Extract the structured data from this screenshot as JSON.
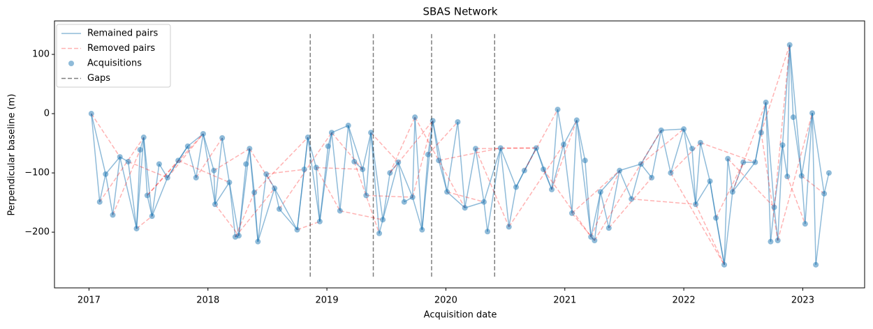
{
  "chart_data": {
    "type": "network",
    "title": "SBAS Network",
    "x_label": "Acquisition date",
    "y_label": "Perpendicular baseline (m)",
    "xlim": [
      2016.71,
      2023.52
    ],
    "ylim": [
      -294,
      156.5
    ],
    "xticks": [
      2017,
      2018,
      2019,
      2020,
      2021,
      2022,
      2023
    ],
    "yticks": [
      {
        "value": -200,
        "label": "−200"
      },
      {
        "value": -100,
        "label": "−100"
      },
      0,
      100
    ],
    "legend": "upper left",
    "remained_pairs": {
      "name": "Remained pairs",
      "color": "#1f77b4",
      "pairs": [
        [
          0,
          1
        ],
        [
          1,
          2
        ],
        [
          2,
          3
        ],
        [
          3,
          4
        ],
        [
          4,
          5
        ],
        [
          5,
          6
        ],
        [
          6,
          7
        ],
        [
          7,
          8
        ],
        [
          8,
          9
        ],
        [
          9,
          10
        ],
        [
          10,
          11
        ],
        [
          11,
          12
        ],
        [
          12,
          13
        ],
        [
          13,
          14
        ],
        [
          14,
          15
        ],
        [
          15,
          16
        ],
        [
          16,
          17
        ],
        [
          17,
          18
        ],
        [
          18,
          19
        ],
        [
          19,
          20
        ],
        [
          20,
          21
        ],
        [
          21,
          22
        ],
        [
          22,
          23
        ],
        [
          23,
          24
        ],
        [
          24,
          25
        ],
        [
          25,
          26
        ],
        [
          26,
          27
        ],
        [
          27,
          28
        ],
        [
          28,
          29
        ],
        [
          29,
          30
        ],
        [
          30,
          31
        ],
        [
          31,
          32
        ],
        [
          32,
          33
        ],
        [
          33,
          34
        ],
        [
          34,
          35
        ],
        [
          35,
          36
        ],
        [
          36,
          37
        ],
        [
          37,
          38
        ],
        [
          38,
          39
        ],
        [
          39,
          40
        ],
        [
          40,
          41
        ],
        [
          41,
          42
        ],
        [
          42,
          43
        ],
        [
          43,
          44
        ],
        [
          44,
          45
        ],
        [
          45,
          46
        ],
        [
          46,
          47
        ],
        [
          47,
          48
        ],
        [
          48,
          49
        ],
        [
          49,
          50
        ],
        [
          50,
          51
        ],
        [
          51,
          52
        ],
        [
          52,
          53
        ],
        [
          53,
          54
        ],
        [
          54,
          55
        ],
        [
          55,
          56
        ],
        [
          56,
          57
        ],
        [
          57,
          58
        ],
        [
          58,
          59
        ],
        [
          59,
          60
        ],
        [
          60,
          61
        ],
        [
          61,
          62
        ],
        [
          62,
          63
        ],
        [
          63,
          64
        ],
        [
          64,
          65
        ],
        [
          65,
          66
        ],
        [
          66,
          67
        ],
        [
          67,
          68
        ],
        [
          68,
          69
        ],
        [
          69,
          70
        ],
        [
          70,
          71
        ],
        [
          71,
          72
        ],
        [
          72,
          73
        ],
        [
          73,
          74
        ],
        [
          74,
          75
        ],
        [
          75,
          76
        ],
        [
          76,
          77
        ],
        [
          77,
          78
        ],
        [
          78,
          79
        ],
        [
          79,
          80
        ],
        [
          80,
          81
        ],
        [
          81,
          82
        ],
        [
          82,
          83
        ],
        [
          83,
          84
        ],
        [
          84,
          85
        ],
        [
          85,
          86
        ],
        [
          86,
          87
        ],
        [
          87,
          88
        ],
        [
          88,
          89
        ],
        [
          89,
          90
        ],
        [
          90,
          91
        ],
        [
          91,
          92
        ],
        [
          92,
          93
        ],
        [
          93,
          94
        ],
        [
          94,
          95
        ],
        [
          95,
          96
        ],
        [
          96,
          97
        ],
        [
          97,
          98
        ],
        [
          98,
          99
        ],
        [
          99,
          100
        ],
        [
          100,
          101
        ],
        [
          101,
          102
        ],
        [
          102,
          103
        ],
        [
          103,
          104
        ],
        [
          104,
          105
        ],
        [
          105,
          106
        ],
        [
          106,
          107
        ],
        [
          0,
          2
        ],
        [
          2,
          4
        ],
        [
          4,
          6
        ],
        [
          6,
          8
        ],
        [
          8,
          10
        ],
        [
          10,
          12
        ],
        [
          12,
          14
        ],
        [
          14,
          16
        ],
        [
          16,
          18
        ],
        [
          18,
          20
        ],
        [
          20,
          22
        ],
        [
          22,
          24
        ],
        [
          24,
          26
        ],
        [
          26,
          28
        ],
        [
          28,
          30
        ],
        [
          30,
          32
        ],
        [
          32,
          34
        ],
        [
          34,
          36
        ],
        [
          36,
          38
        ],
        [
          38,
          40
        ],
        [
          40,
          42
        ],
        [
          42,
          44
        ],
        [
          44,
          46
        ],
        [
          46,
          48
        ],
        [
          48,
          50
        ],
        [
          50,
          52
        ],
        [
          52,
          54
        ],
        [
          54,
          56
        ],
        [
          56,
          58
        ],
        [
          58,
          60
        ],
        [
          60,
          62
        ],
        [
          62,
          64
        ],
        [
          64,
          66
        ],
        [
          66,
          68
        ],
        [
          68,
          70
        ],
        [
          70,
          72
        ],
        [
          72,
          74
        ],
        [
          74,
          76
        ],
        [
          76,
          78
        ],
        [
          78,
          80
        ],
        [
          80,
          82
        ],
        [
          82,
          84
        ],
        [
          84,
          86
        ],
        [
          86,
          88
        ],
        [
          88,
          90
        ],
        [
          90,
          92
        ],
        [
          92,
          94
        ],
        [
          94,
          96
        ],
        [
          96,
          98
        ],
        [
          98,
          100
        ],
        [
          100,
          102
        ],
        [
          102,
          104
        ],
        [
          104,
          106
        ]
      ]
    },
    "removed_pairs": {
      "name": "Removed pairs",
      "color": "#ff0000",
      "pairs": [
        [
          0,
          4
        ],
        [
          3,
          7
        ],
        [
          6,
          10
        ],
        [
          9,
          13
        ],
        [
          12,
          16
        ],
        [
          15,
          19
        ],
        [
          18,
          22
        ],
        [
          21,
          25
        ],
        [
          24,
          28
        ],
        [
          27,
          31
        ],
        [
          30,
          34
        ],
        [
          33,
          37
        ],
        [
          36,
          40
        ],
        [
          39,
          43
        ],
        [
          42,
          46
        ],
        [
          45,
          49
        ],
        [
          48,
          52
        ],
        [
          51,
          55
        ],
        [
          54,
          58
        ],
        [
          57,
          61
        ],
        [
          60,
          64
        ],
        [
          63,
          67
        ],
        [
          66,
          70
        ],
        [
          69,
          73
        ],
        [
          72,
          76
        ],
        [
          75,
          79
        ],
        [
          78,
          82
        ],
        [
          81,
          85
        ],
        [
          84,
          88
        ],
        [
          87,
          91
        ],
        [
          90,
          94
        ],
        [
          93,
          97
        ],
        [
          96,
          100
        ],
        [
          99,
          103
        ],
        [
          102,
          106
        ],
        [
          1,
          8
        ],
        [
          5,
          12
        ],
        [
          9,
          16
        ],
        [
          13,
          20
        ],
        [
          17,
          24
        ],
        [
          21,
          28
        ],
        [
          25,
          32
        ],
        [
          29,
          36
        ],
        [
          33,
          40
        ],
        [
          37,
          44
        ],
        [
          41,
          48
        ],
        [
          45,
          52
        ],
        [
          49,
          56
        ],
        [
          53,
          60
        ],
        [
          57,
          64
        ],
        [
          61,
          68
        ],
        [
          65,
          72
        ],
        [
          69,
          76
        ],
        [
          73,
          80
        ],
        [
          77,
          84
        ],
        [
          81,
          88
        ],
        [
          85,
          92
        ],
        [
          89,
          96
        ],
        [
          93,
          100
        ],
        [
          97,
          104
        ]
      ]
    },
    "acquisitions": {
      "name": "Acquisitions",
      "color": "#1f77b4",
      "x": [
        2017.02,
        2017.09,
        2017.14,
        2017.2,
        2017.26,
        2017.33,
        2017.4,
        2017.43,
        2017.46,
        2017.49,
        2017.53,
        2017.59,
        2017.66,
        2017.75,
        2017.83,
        2017.9,
        2017.96,
        2018.05,
        2018.06,
        2018.12,
        2018.18,
        2018.23,
        2018.26,
        2018.32,
        2018.35,
        2018.39,
        2018.42,
        2018.49,
        2018.56,
        2018.6,
        2018.75,
        2018.81,
        2018.84,
        2018.91,
        2018.94,
        2019.01,
        2019.04,
        2019.11,
        2019.18,
        2019.23,
        2019.3,
        2019.33,
        2019.37,
        2019.44,
        2019.47,
        2019.53,
        2019.6,
        2019.65,
        2019.72,
        2019.74,
        2019.8,
        2019.85,
        2019.89,
        2019.94,
        2020.01,
        2020.1,
        2020.16,
        2020.25,
        2020.32,
        2020.35,
        2020.46,
        2020.53,
        2020.59,
        2020.66,
        2020.76,
        2020.82,
        2020.89,
        2020.94,
        2020.99,
        2021.06,
        2021.1,
        2021.17,
        2021.22,
        2021.25,
        2021.3,
        2021.37,
        2021.46,
        2021.56,
        2021.64,
        2021.73,
        2021.81,
        2021.89,
        2022.0,
        2022.07,
        2022.1,
        2022.14,
        2022.22,
        2022.27,
        2022.34,
        2022.37,
        2022.41,
        2022.5,
        2022.6,
        2022.65,
        2022.69,
        2022.73,
        2022.76,
        2022.79,
        2022.83,
        2022.87,
        2022.89,
        2022.92,
        2022.99,
        2023.02,
        2023.08,
        2023.11,
        2023.18,
        2023.22
      ],
      "values": [
        0,
        -149,
        -102,
        -171,
        -73,
        -81,
        -194,
        -61,
        -40,
        -138,
        -173,
        -85,
        -108,
        -79,
        -55,
        -108,
        -34,
        -96,
        -153,
        -41,
        -116,
        -208,
        -206,
        -85,
        -59,
        -133,
        -216,
        -102,
        -126,
        -161,
        -196,
        -94,
        -40,
        -91,
        -182,
        -55,
        -32,
        -164,
        -20,
        -81,
        -94,
        -138,
        -32,
        -202,
        -179,
        -100,
        -82,
        -149,
        -141,
        -6,
        -196,
        -69,
        -12,
        -79,
        -132,
        -14,
        -159,
        -59,
        -149,
        -199,
        -58,
        -191,
        -124,
        -96,
        -58,
        -94,
        -128,
        7,
        -52,
        -168,
        -11,
        -79,
        -208,
        -214,
        -132,
        -193,
        -96,
        -144,
        -85,
        -108,
        -28,
        -100,
        -26,
        -59,
        -153,
        -49,
        -114,
        -176,
        -255,
        -76,
        -132,
        -82,
        -82,
        -32,
        19,
        -216,
        -158,
        -214,
        -53,
        -106,
        116,
        -6,
        -105,
        -186,
        1,
        -255,
        -135,
        -100
      ]
    },
    "gaps": {
      "name": "Gaps",
      "color": "#000000",
      "x": [
        2018.86,
        2019.39,
        2019.88,
        2020.41
      ],
      "span": [
        -275,
        136
      ]
    }
  }
}
